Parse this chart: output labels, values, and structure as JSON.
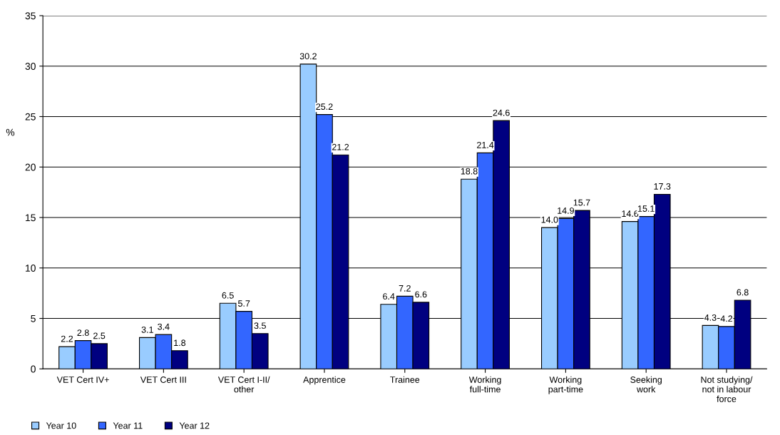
{
  "chart_data": {
    "type": "bar",
    "ylabel": "%",
    "categories": [
      "VET Cert IV+",
      "VET Cert III",
      "VET Cert I-II/\nother",
      "Apprentice",
      "Trainee",
      "Working\nfull-time",
      "Working\npart-time",
      "Seeking\nwork",
      "Not studying/\nnot in labour\nforce"
    ],
    "series": [
      {
        "name": "Year 10",
        "color": "#99ccff",
        "values": [
          2.2,
          3.1,
          6.5,
          30.2,
          6.4,
          18.8,
          14.0,
          14.6,
          4.3
        ],
        "value_labels": [
          "2.2",
          "3.1",
          "6.5",
          "30.2",
          "6.4",
          "18.8",
          "14.0",
          "14.6",
          "4.3"
        ]
      },
      {
        "name": "Year 11",
        "color": "#3366ff",
        "values": [
          2.8,
          3.4,
          5.7,
          25.2,
          7.2,
          21.4,
          14.9,
          15.1,
          4.2
        ],
        "value_labels": [
          "2.8",
          "3.4",
          "5.7",
          "25.2",
          "7.2",
          "21.4",
          "14.9",
          "15.1",
          "4.2"
        ]
      },
      {
        "name": "Year 12",
        "color": "#000080",
        "values": [
          2.5,
          1.8,
          3.5,
          21.2,
          6.6,
          24.6,
          15.7,
          17.3,
          6.8
        ],
        "value_labels": [
          "2.5",
          "1.8",
          "3.5",
          "21.2",
          "6.6",
          "24.6",
          "15.7",
          "17.3",
          "6.8"
        ]
      }
    ],
    "ylim": [
      0,
      35
    ],
    "yticks": [
      0,
      5,
      10,
      15,
      20,
      25,
      30,
      35
    ],
    "grid": "y",
    "legend": "bottom left"
  }
}
